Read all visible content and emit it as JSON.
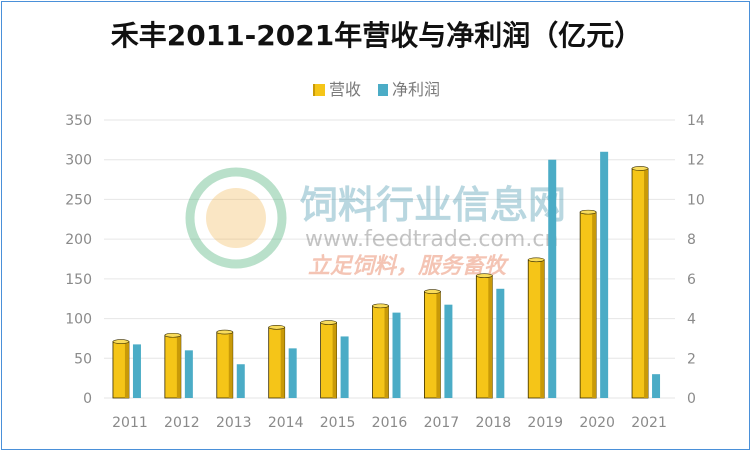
{
  "colors": {
    "revenue": "#f5c518",
    "revenue_dark": "#c99a08",
    "revenue_top": "#f9dc5c",
    "profit": "#4bacc6",
    "grid": "#e6e6e6",
    "frame": "#4a90d9"
  },
  "watermark": {
    "name": "饲料行业信息网",
    "url": "www.feedtrade.com.cn",
    "slogan": "立足饲料，服务畜牧"
  },
  "chart_data": {
    "type": "bar",
    "title": "禾丰2011-2021年营收与净利润（亿元）",
    "categories": [
      "2011",
      "2012",
      "2013",
      "2014",
      "2015",
      "2016",
      "2017",
      "2018",
      "2019",
      "2020",
      "2021"
    ],
    "series": [
      {
        "name": "营收",
        "axis": "left",
        "values": [
          71,
          79,
          83,
          89,
          95,
          116,
          134,
          154,
          174,
          234,
          289
        ]
      },
      {
        "name": "净利润",
        "axis": "right",
        "values": [
          2.7,
          2.4,
          1.7,
          2.5,
          3.1,
          4.3,
          4.7,
          5.5,
          12.0,
          12.4,
          1.2
        ]
      }
    ],
    "y_left": {
      "min": 0,
      "max": 350,
      "ticks": [
        0,
        50,
        100,
        150,
        200,
        250,
        300,
        350
      ]
    },
    "y_right": {
      "min": 0,
      "max": 14,
      "ticks": [
        0,
        2,
        4,
        6,
        8,
        10,
        12,
        14
      ]
    },
    "legend_position": "top-center",
    "grid": true
  }
}
